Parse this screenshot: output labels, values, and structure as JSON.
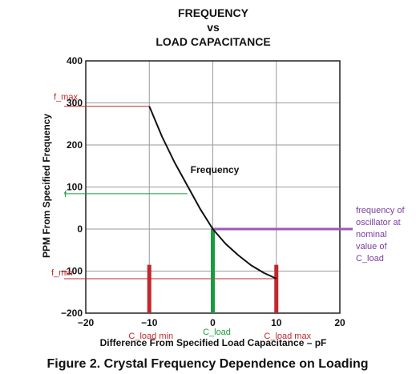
{
  "title_lines": [
    "FREQUENCY",
    "vs",
    "LOAD CAPACITANCE"
  ],
  "caption": "Figure 2.  Crystal Frequency Dependence on Loading",
  "chart_data": {
    "type": "line",
    "xlabel": "Difference From Specified Load Capacitance – pF",
    "ylabel": "PPM From Specified Frequency",
    "xlim": [
      -20,
      20
    ],
    "ylim": [
      -200,
      400
    ],
    "xticks": [
      -20,
      -10,
      0,
      10,
      20
    ],
    "yticks": [
      400,
      300,
      200,
      100,
      0,
      -100,
      -200
    ],
    "grid": true,
    "series": [
      {
        "name": "Frequency",
        "x": [
          -10,
          -8,
          -6,
          -4,
          -2,
          0,
          2,
          4,
          6,
          8,
          10
        ],
        "y": [
          292,
          220,
          158,
          103,
          48,
          0,
          -35,
          -62,
          -86,
          -104,
          -118
        ]
      }
    ],
    "annotations": {
      "f_max": {
        "label": "f_max",
        "y": 292
      },
      "f": {
        "label": "f",
        "y": 84
      },
      "f_min": {
        "label": "f_min",
        "y": -118
      },
      "c_load_min": {
        "label": "C_load min",
        "x": -10
      },
      "c_load": {
        "label": "C_load",
        "x": 0
      },
      "c_load_max": {
        "label": "C_load max",
        "x": 10
      },
      "nominal_note": [
        "frequency of",
        "oscillator at",
        "nominal",
        "value of",
        "C_load"
      ]
    },
    "colors": {
      "red": "#c1272d",
      "green": "#1a9c3e",
      "purple": "#9b59b6",
      "curve": "#111111"
    }
  }
}
